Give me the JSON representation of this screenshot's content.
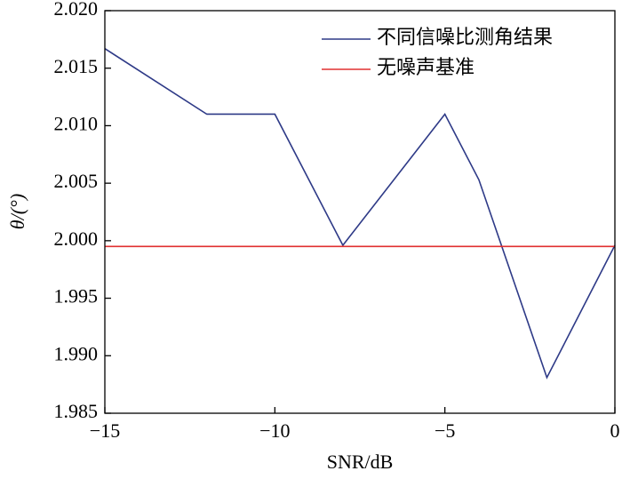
{
  "chart_data": {
    "type": "line",
    "x_label": "SNR/dB",
    "y_label": "θ/(°)",
    "x": [
      -15,
      -12,
      -10,
      -8,
      -5,
      -4,
      -2,
      0
    ],
    "series": [
      {
        "name": "不同信噪比测角结果",
        "color": "#2e3a87",
        "values": [
          2.0167,
          2.011,
          2.011,
          1.9996,
          2.011,
          2.0053,
          1.9881,
          1.9996
        ]
      },
      {
        "name": "无噪声基准",
        "color": "#e03030",
        "values": [
          1.9995,
          1.9995,
          1.9995,
          1.9995,
          1.9995,
          1.9995,
          1.9995,
          1.9995
        ]
      }
    ],
    "xlim": [
      -15,
      0
    ],
    "xticks": [
      {
        "value": -15,
        "label": "−15"
      },
      {
        "value": -10,
        "label": "−10"
      },
      {
        "value": -5,
        "label": "−5"
      },
      0
    ],
    "ylim": [
      1.985,
      2.02
    ],
    "yticks": [
      {
        "value": 1.985,
        "label": "1.985"
      },
      {
        "value": 1.99,
        "label": "1.990"
      },
      {
        "value": 1.995,
        "label": "1.995"
      },
      {
        "value": 2.0,
        "label": "2.000"
      },
      {
        "value": 2.005,
        "label": "2.005"
      },
      {
        "value": 2.01,
        "label": "2.010"
      },
      {
        "value": 2.015,
        "label": "2.015"
      },
      {
        "value": 2.02,
        "label": "2.020"
      }
    ],
    "legend": "upper right",
    "grid": false
  }
}
